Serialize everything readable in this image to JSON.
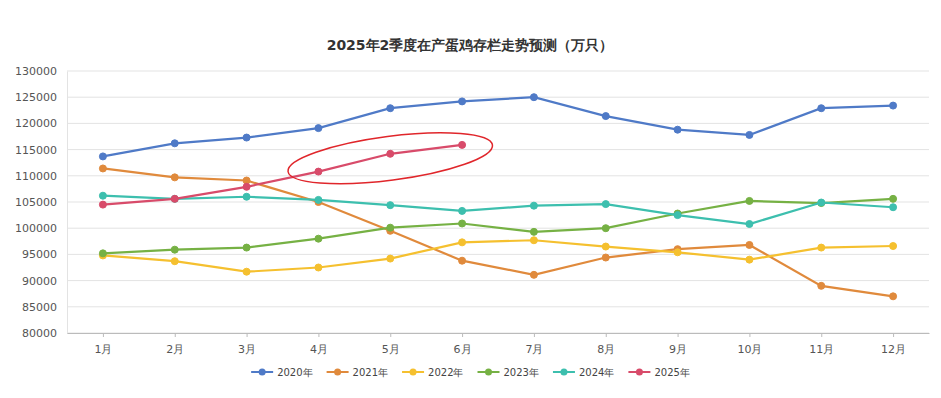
{
  "chart_data": {
    "type": "line",
    "title": "2025年2季度在产蛋鸡存栏走势预测（万只）",
    "categories": [
      "1月",
      "2月",
      "3月",
      "4月",
      "5月",
      "6月",
      "7月",
      "8月",
      "9月",
      "10月",
      "11月",
      "12月"
    ],
    "series": [
      {
        "name": "2020年",
        "color": "#4f7ac7",
        "values": [
          113700,
          116200,
          117300,
          119100,
          122900,
          124200,
          125000,
          121400,
          118800,
          117800,
          122900,
          123400
        ]
      },
      {
        "name": "2021年",
        "color": "#e08a3c",
        "values": [
          111400,
          109700,
          109100,
          105000,
          99500,
          93800,
          91100,
          94400,
          96000,
          96800,
          89000,
          87000
        ]
      },
      {
        "name": "2022年",
        "color": "#f5c02f",
        "values": [
          94800,
          93700,
          91700,
          92500,
          94200,
          97300,
          97700,
          96500,
          95400,
          94000,
          96300,
          96600
        ]
      },
      {
        "name": "2023年",
        "color": "#76b144",
        "values": [
          95200,
          95900,
          96300,
          98000,
          100100,
          100900,
          99300,
          100000,
          102800,
          105200,
          104800,
          105600
        ]
      },
      {
        "name": "2024年",
        "color": "#3dbfae",
        "values": [
          106200,
          105600,
          106000,
          105400,
          104400,
          103300,
          104300,
          104600,
          102500,
          100800,
          104900,
          104000
        ]
      },
      {
        "name": "2025年",
        "color": "#d84b6a",
        "values": [
          104500,
          105600,
          107900,
          110800,
          114200,
          115900,
          null,
          null,
          null,
          null,
          null,
          null
        ]
      }
    ],
    "ylim": [
      80000,
      130000
    ],
    "yticks": [
      80000,
      85000,
      90000,
      95000,
      100000,
      105000,
      110000,
      115000,
      120000,
      125000,
      130000
    ],
    "grid": true,
    "legend": "bottom",
    "marker": "circle",
    "line_style": "solid"
  }
}
